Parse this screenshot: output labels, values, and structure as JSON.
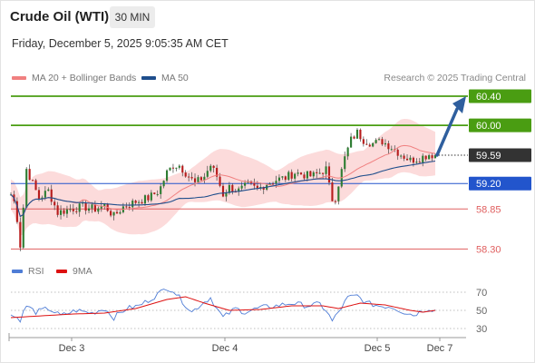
{
  "header": {
    "title": "Crude Oil (WTI)",
    "timeframe": "30 MIN",
    "datetime": "Friday, December 5, 2025 9:05:35 AM CET"
  },
  "legend": {
    "ma20_label": "MA 20 + Bollinger Bands",
    "ma50_label": "MA 50",
    "credit": "Research © 2025 Trading Central",
    "rsi_label": "RSI",
    "ma9_label": "9MA"
  },
  "colors": {
    "ma20": "#f08080",
    "ma50": "#1f4e8c",
    "bands_fill": "#fbd5d5",
    "green_level": "#4a9d12",
    "blue_level": "#2255cc",
    "red_level": "#e06060",
    "current_price": "#333333",
    "arrow": "#2f5f9e",
    "rsi": "#4f7dd6",
    "ma9": "#dd1111"
  },
  "chart_data": [
    {
      "type": "candlestick",
      "title": "Crude Oil (WTI)",
      "timeframe": "30 MIN",
      "x_ticks": [
        "Dec 3",
        "Dec 4",
        "Dec 5",
        "Dec 7"
      ],
      "ylim": [
        58.18,
        60.55
      ],
      "levels": [
        {
          "value": 60.4,
          "label": "60.40",
          "kind": "resistance",
          "style": "badge",
          "color": "#4a9d12"
        },
        {
          "value": 60.0,
          "label": "60.00",
          "kind": "resistance",
          "style": "badge",
          "color": "#4a9d12"
        },
        {
          "value": 59.59,
          "label": "59.59",
          "kind": "current",
          "style": "badge",
          "color": "#333333"
        },
        {
          "value": 59.2,
          "label": "59.20",
          "kind": "pivot",
          "style": "badge",
          "color": "#2255cc"
        },
        {
          "value": 58.85,
          "label": "58.85",
          "kind": "support",
          "style": "text",
          "color": "#e06060"
        },
        {
          "value": 58.3,
          "label": "58.30",
          "kind": "support",
          "style": "text",
          "color": "#e06060"
        }
      ],
      "price_path": [
        [
          0,
          59.05
        ],
        [
          3,
          58.9
        ],
        [
          6,
          58.35
        ],
        [
          10,
          59.4
        ],
        [
          14,
          59.2
        ],
        [
          18,
          59.0
        ],
        [
          24,
          59.1
        ],
        [
          30,
          58.8
        ],
        [
          38,
          58.85
        ],
        [
          46,
          58.88
        ],
        [
          54,
          58.85
        ],
        [
          60,
          58.9
        ],
        [
          66,
          58.75
        ],
        [
          72,
          58.88
        ],
        [
          80,
          58.95
        ],
        [
          88,
          59.0
        ],
        [
          95,
          59.1
        ],
        [
          100,
          59.35
        ],
        [
          104,
          59.45
        ],
        [
          108,
          59.45
        ],
        [
          112,
          59.35
        ],
        [
          118,
          59.2
        ],
        [
          124,
          59.3
        ],
        [
          128,
          59.45
        ],
        [
          132,
          59.3
        ],
        [
          136,
          59.05
        ],
        [
          140,
          59.15
        ],
        [
          146,
          59.1
        ],
        [
          152,
          59.18
        ],
        [
          158,
          59.12
        ],
        [
          164,
          59.2
        ],
        [
          170,
          59.25
        ],
        [
          176,
          59.28
        ],
        [
          182,
          59.35
        ],
        [
          188,
          59.32
        ],
        [
          193,
          59.3
        ],
        [
          198,
          59.35
        ],
        [
          202,
          59.4
        ],
        [
          205,
          59.05
        ],
        [
          207,
          58.92
        ],
        [
          210,
          59.2
        ],
        [
          214,
          59.55
        ],
        [
          218,
          59.8
        ],
        [
          222,
          59.9
        ],
        [
          226,
          59.8
        ],
        [
          232,
          59.75
        ],
        [
          238,
          59.78
        ],
        [
          244,
          59.7
        ],
        [
          250,
          59.6
        ],
        [
          256,
          59.52
        ],
        [
          262,
          59.55
        ],
        [
          268,
          59.6
        ],
        [
          272,
          59.59
        ]
      ],
      "projection": {
        "from": 59.59,
        "to": 60.4
      },
      "bollinger_width": 0.32
    },
    {
      "type": "line",
      "title": "RSI",
      "series": [
        {
          "name": "RSI"
        },
        {
          "name": "9MA"
        }
      ],
      "y_ticks": [
        70,
        50,
        30
      ],
      "ylim": [
        25,
        80
      ],
      "rsi_path": [
        [
          0,
          45
        ],
        [
          6,
          40
        ],
        [
          10,
          55
        ],
        [
          16,
          48
        ],
        [
          24,
          52
        ],
        [
          32,
          44
        ],
        [
          42,
          50
        ],
        [
          52,
          47
        ],
        [
          60,
          52
        ],
        [
          66,
          42
        ],
        [
          74,
          52
        ],
        [
          82,
          55
        ],
        [
          90,
          63
        ],
        [
          96,
          70
        ],
        [
          100,
          75
        ],
        [
          104,
          72
        ],
        [
          110,
          60
        ],
        [
          116,
          48
        ],
        [
          122,
          57
        ],
        [
          128,
          64
        ],
        [
          132,
          52
        ],
        [
          136,
          42
        ],
        [
          144,
          52
        ],
        [
          150,
          48
        ],
        [
          160,
          53
        ],
        [
          170,
          55
        ],
        [
          180,
          58
        ],
        [
          190,
          55
        ],
        [
          198,
          57
        ],
        [
          202,
          50
        ],
        [
          206,
          38
        ],
        [
          210,
          48
        ],
        [
          216,
          64
        ],
        [
          222,
          66
        ],
        [
          228,
          58
        ],
        [
          236,
          55
        ],
        [
          244,
          54
        ],
        [
          252,
          48
        ],
        [
          258,
          45
        ],
        [
          264,
          50
        ],
        [
          268,
          52
        ],
        [
          272,
          50
        ]
      ],
      "ma9_path": [
        [
          0,
          42
        ],
        [
          20,
          44
        ],
        [
          40,
          46
        ],
        [
          60,
          47
        ],
        [
          80,
          52
        ],
        [
          100,
          62
        ],
        [
          112,
          65
        ],
        [
          124,
          58
        ],
        [
          140,
          50
        ],
        [
          160,
          51
        ],
        [
          180,
          55
        ],
        [
          200,
          55
        ],
        [
          210,
          52
        ],
        [
          224,
          58
        ],
        [
          240,
          56
        ],
        [
          256,
          50
        ],
        [
          264,
          48
        ],
        [
          272,
          50
        ]
      ]
    }
  ]
}
